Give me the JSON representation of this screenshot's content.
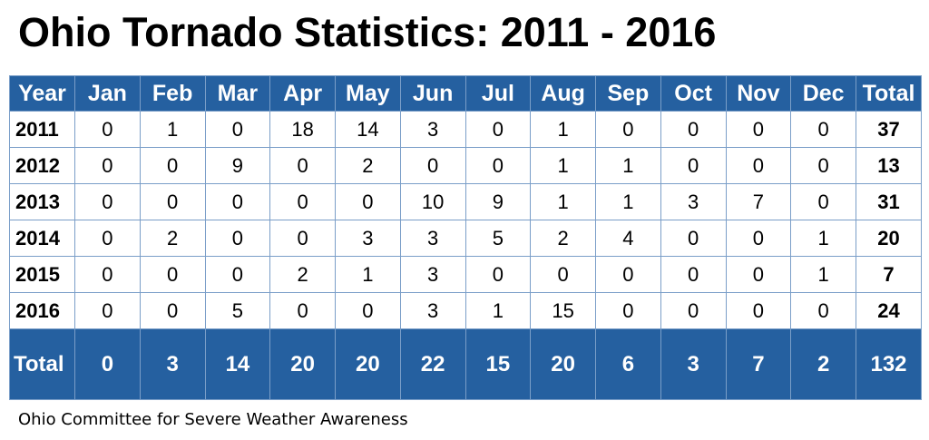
{
  "title": "Ohio Tornado Statistics: 2011 - 2016",
  "table": {
    "headers": [
      "Year",
      "Jan",
      "Feb",
      "Mar",
      "Apr",
      "May",
      "Jun",
      "Jul",
      "Aug",
      "Sep",
      "Oct",
      "Nov",
      "Dec",
      "Total"
    ],
    "rows": [
      [
        "2011",
        "0",
        "1",
        "0",
        "18",
        "14",
        "3",
        "0",
        "1",
        "0",
        "0",
        "0",
        "0",
        "37"
      ],
      [
        "2012",
        "0",
        "0",
        "9",
        "0",
        "2",
        "0",
        "0",
        "1",
        "1",
        "0",
        "0",
        "0",
        "13"
      ],
      [
        "2013",
        "0",
        "0",
        "0",
        "0",
        "0",
        "10",
        "9",
        "1",
        "1",
        "3",
        "7",
        "0",
        "31"
      ],
      [
        "2014",
        "0",
        "2",
        "0",
        "0",
        "3",
        "3",
        "5",
        "2",
        "4",
        "0",
        "0",
        "1",
        "20"
      ],
      [
        "2015",
        "0",
        "0",
        "0",
        "2",
        "1",
        "3",
        "0",
        "0",
        "0",
        "0",
        "0",
        "1",
        "7"
      ],
      [
        "2016",
        "0",
        "0",
        "5",
        "0",
        "0",
        "3",
        "1",
        "15",
        "0",
        "0",
        "0",
        "0",
        "24"
      ]
    ],
    "totals": [
      "Total",
      "0",
      "3",
      "14",
      "20",
      "20",
      "22",
      "15",
      "20",
      "6",
      "3",
      "7",
      "2",
      "132"
    ]
  },
  "footer": "Ohio Committee for Severe Weather Awareness",
  "colors": {
    "header_bg": "#2560a0",
    "header_text": "#ffffff",
    "grid_line": "#7a9ec8"
  }
}
